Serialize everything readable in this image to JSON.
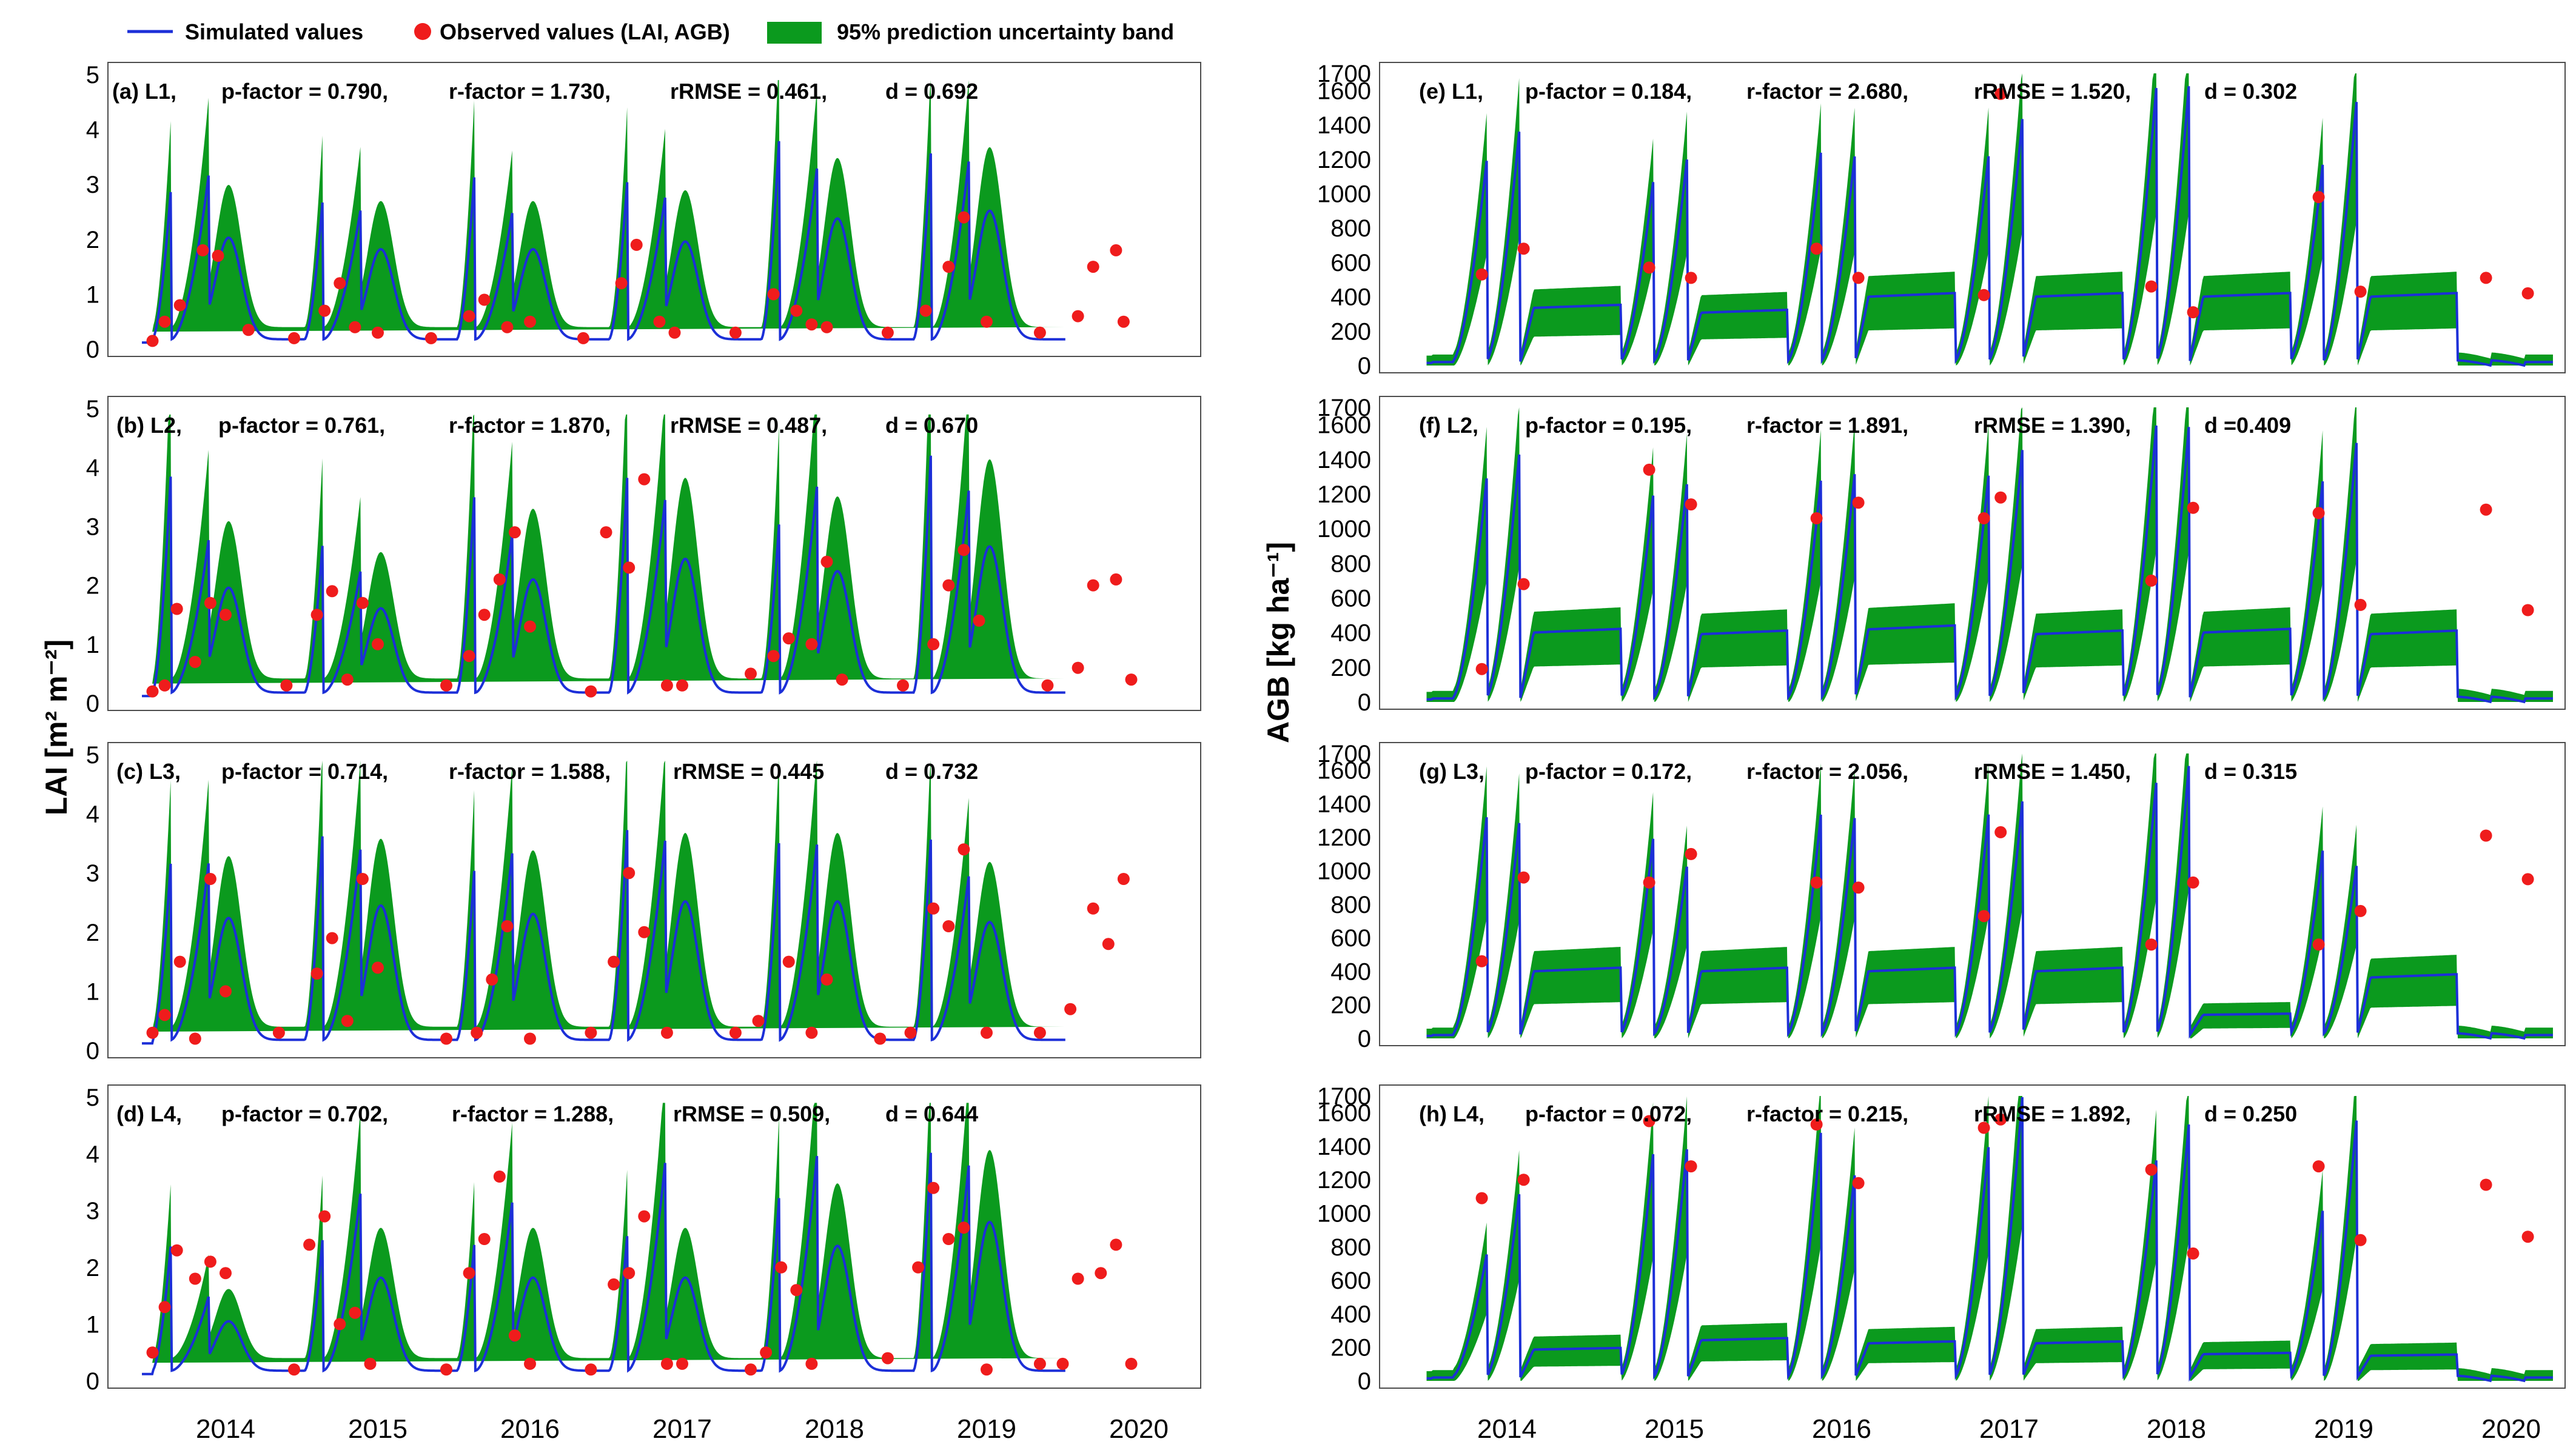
{
  "legend": {
    "simulated": "Simulated values",
    "observed": "Observed values (LAI, AGB)",
    "band": "95% prediction uncertainty band"
  },
  "colors": {
    "band": "#0b9a1e",
    "line": "#1c2fd8",
    "obs": "#ef1c1c"
  },
  "years": [
    "2014",
    "2015",
    "2016",
    "2017",
    "2018",
    "2019",
    "2020"
  ],
  "ylabel_lai": "LAI [m² m⁻²]",
  "ylabel_agb": "AGB [kg ha⁻¹]",
  "chart_data": [
    {
      "id": "a",
      "type": "line",
      "var": "LAI",
      "label": "(a) L1,",
      "p_factor": "p-factor = 0.790,",
      "r_factor": "r-factor = 1.730,",
      "rrmse": "rRMSE  = 0.461,",
      "d": "d = 0.692",
      "ylim": [
        0,
        5
      ],
      "yticks": [
        "0",
        "1",
        "2",
        "3",
        "4",
        "5"
      ],
      "peaks": [
        2.9,
        3.2,
        2.8,
        2.6,
        3.4,
        2.6,
        3.1,
        2.8,
        4.0,
        3.4,
        3.9,
        3.6
      ],
      "band_pad": 0.4,
      "observed": [
        [
          2013.62,
          0.15
        ],
        [
          2013.7,
          0.5
        ],
        [
          2013.8,
          0.8
        ],
        [
          2013.95,
          1.8
        ],
        [
          2014.05,
          1.7
        ],
        [
          2014.25,
          0.35
        ],
        [
          2014.55,
          0.2
        ],
        [
          2014.75,
          0.7
        ],
        [
          2014.85,
          1.2
        ],
        [
          2014.95,
          0.4
        ],
        [
          2015.1,
          0.3
        ],
        [
          2015.45,
          0.2
        ],
        [
          2015.7,
          0.6
        ],
        [
          2015.8,
          0.9
        ],
        [
          2015.95,
          0.4
        ],
        [
          2016.1,
          0.5
        ],
        [
          2016.45,
          0.2
        ],
        [
          2016.7,
          1.2
        ],
        [
          2016.8,
          1.9
        ],
        [
          2016.95,
          0.5
        ],
        [
          2017.05,
          0.3
        ],
        [
          2017.45,
          0.3
        ],
        [
          2017.7,
          1.0
        ],
        [
          2017.85,
          0.7
        ],
        [
          2017.95,
          0.45
        ],
        [
          2018.05,
          0.4
        ],
        [
          2018.45,
          0.3
        ],
        [
          2018.7,
          0.7
        ],
        [
          2018.85,
          1.5
        ],
        [
          2018.95,
          2.4
        ],
        [
          2019.1,
          0.5
        ],
        [
          2019.45,
          0.3
        ],
        [
          2019.7,
          0.6
        ],
        [
          2019.8,
          1.5
        ],
        [
          2019.95,
          1.8
        ],
        [
          2020.0,
          0.5
        ]
      ]
    },
    {
      "id": "b",
      "type": "line",
      "var": "LAI",
      "label": "(b) L2,",
      "p_factor": "p-factor = 0.761,",
      "r_factor": "r-factor = 1.870,",
      "rrmse": "rRMSE  = 0.487,",
      "d": "d = 0.670",
      "ylim": [
        0,
        5
      ],
      "yticks": [
        "0",
        "1",
        "2",
        "3",
        "4",
        "5"
      ],
      "peaks": [
        3.9,
        2.8,
        2.8,
        2.3,
        3.8,
        3.0,
        3.9,
        3.5,
        3.2,
        3.8,
        4.6,
        3.8
      ],
      "band_pad": 0.5,
      "observed": [
        [
          2013.62,
          0.2
        ],
        [
          2013.7,
          0.3
        ],
        [
          2013.78,
          1.6
        ],
        [
          2013.9,
          0.7
        ],
        [
          2014.0,
          1.7
        ],
        [
          2014.1,
          1.5
        ],
        [
          2014.5,
          0.3
        ],
        [
          2014.7,
          1.5
        ],
        [
          2014.8,
          1.9
        ],
        [
          2014.9,
          0.4
        ],
        [
          2015.0,
          1.7
        ],
        [
          2015.1,
          1.0
        ],
        [
          2015.55,
          0.3
        ],
        [
          2015.7,
          0.8
        ],
        [
          2015.8,
          1.5
        ],
        [
          2015.9,
          2.1
        ],
        [
          2016.0,
          2.9
        ],
        [
          2016.1,
          1.3
        ],
        [
          2016.5,
          0.2
        ],
        [
          2016.6,
          2.9
        ],
        [
          2016.75,
          2.3
        ],
        [
          2016.85,
          3.8
        ],
        [
          2017.0,
          0.3
        ],
        [
          2017.1,
          0.3
        ],
        [
          2017.55,
          0.5
        ],
        [
          2017.7,
          0.8
        ],
        [
          2017.8,
          1.1
        ],
        [
          2017.95,
          1.0
        ],
        [
          2018.05,
          2.4
        ],
        [
          2018.15,
          0.4
        ],
        [
          2018.55,
          0.3
        ],
        [
          2018.75,
          1.0
        ],
        [
          2018.85,
          2.0
        ],
        [
          2018.95,
          2.6
        ],
        [
          2019.05,
          1.4
        ],
        [
          2019.5,
          0.3
        ],
        [
          2019.7,
          0.6
        ],
        [
          2019.8,
          2.0
        ],
        [
          2019.95,
          2.1
        ],
        [
          2020.05,
          0.4
        ]
      ]
    },
    {
      "id": "c",
      "type": "line",
      "var": "LAI",
      "label": "(c) L3,",
      "p_factor": "p-factor = 0.714,",
      "r_factor": "r-factor = 1.588,",
      "rrmse": "rRMSE  = 0.445",
      "d": "d = 0.732",
      "ylim": [
        0,
        5
      ],
      "yticks": [
        "0",
        "1",
        "2",
        "3",
        "4",
        "5"
      ],
      "peaks": [
        3.2,
        3.2,
        3.8,
        3.5,
        3.3,
        3.5,
        3.8,
        3.6,
        3.7,
        3.6,
        3.9,
        3.1
      ],
      "band_pad": 0.4,
      "observed": [
        [
          2013.62,
          0.3
        ],
        [
          2013.7,
          0.6
        ],
        [
          2013.8,
          1.5
        ],
        [
          2013.9,
          0.2
        ],
        [
          2014.0,
          2.9
        ],
        [
          2014.1,
          1.0
        ],
        [
          2014.45,
          0.3
        ],
        [
          2014.7,
          1.3
        ],
        [
          2014.8,
          1.9
        ],
        [
          2014.9,
          0.5
        ],
        [
          2015.0,
          2.9
        ],
        [
          2015.1,
          1.4
        ],
        [
          2015.55,
          0.2
        ],
        [
          2015.75,
          0.3
        ],
        [
          2015.85,
          1.2
        ],
        [
          2015.95,
          2.1
        ],
        [
          2016.1,
          0.2
        ],
        [
          2016.5,
          0.3
        ],
        [
          2016.65,
          1.5
        ],
        [
          2016.75,
          3.0
        ],
        [
          2016.85,
          2.0
        ],
        [
          2017.0,
          0.3
        ],
        [
          2017.45,
          0.3
        ],
        [
          2017.6,
          0.5
        ],
        [
          2017.8,
          1.5
        ],
        [
          2017.95,
          0.3
        ],
        [
          2018.05,
          1.2
        ],
        [
          2018.4,
          0.2
        ],
        [
          2018.6,
          0.3
        ],
        [
          2018.75,
          2.4
        ],
        [
          2018.85,
          2.1
        ],
        [
          2018.95,
          3.4
        ],
        [
          2019.1,
          0.3
        ],
        [
          2019.45,
          0.3
        ],
        [
          2019.65,
          0.7
        ],
        [
          2019.8,
          2.4
        ],
        [
          2019.9,
          1.8
        ],
        [
          2020.0,
          2.9
        ]
      ]
    },
    {
      "id": "d",
      "type": "line",
      "var": "LAI",
      "label": "(d) L4,",
      "p_factor": "p-factor = 0.702,",
      "r_factor": "r-factor = 1.288,",
      "rrmse": "rRMSE  = 0.509,",
      "d": "d = 0.644",
      "ylim": [
        0,
        5
      ],
      "yticks": [
        "0",
        "1",
        "2",
        "3",
        "4",
        "5"
      ],
      "peaks": [
        2.4,
        1.5,
        2.6,
        3.4,
        2.6,
        3.3,
        2.6,
        3.9,
        3.4,
        4.1,
        4.4,
        4.0
      ],
      "band_pad": 0.4,
      "observed": [
        [
          2013.62,
          0.5
        ],
        [
          2013.7,
          1.3
        ],
        [
          2013.78,
          2.3
        ],
        [
          2013.9,
          1.8
        ],
        [
          2014.0,
          2.1
        ],
        [
          2014.1,
          1.9
        ],
        [
          2014.55,
          0.2
        ],
        [
          2014.65,
          2.4
        ],
        [
          2014.75,
          2.9
        ],
        [
          2014.85,
          1.0
        ],
        [
          2014.95,
          1.2
        ],
        [
          2015.05,
          0.3
        ],
        [
          2015.55,
          0.2
        ],
        [
          2015.7,
          1.9
        ],
        [
          2015.8,
          2.5
        ],
        [
          2015.9,
          3.6
        ],
        [
          2016.0,
          0.8
        ],
        [
          2016.1,
          0.3
        ],
        [
          2016.5,
          0.2
        ],
        [
          2016.65,
          1.7
        ],
        [
          2016.75,
          1.9
        ],
        [
          2016.85,
          2.9
        ],
        [
          2017.0,
          0.3
        ],
        [
          2017.1,
          0.3
        ],
        [
          2017.55,
          0.2
        ],
        [
          2017.65,
          0.5
        ],
        [
          2017.75,
          2.0
        ],
        [
          2017.85,
          1.6
        ],
        [
          2017.95,
          0.3
        ],
        [
          2018.45,
          0.4
        ],
        [
          2018.65,
          2.0
        ],
        [
          2018.75,
          3.4
        ],
        [
          2018.85,
          2.5
        ],
        [
          2018.95,
          2.7
        ],
        [
          2019.1,
          0.2
        ],
        [
          2019.45,
          0.3
        ],
        [
          2019.6,
          0.3
        ],
        [
          2019.7,
          1.8
        ],
        [
          2019.85,
          1.9
        ],
        [
          2019.95,
          2.4
        ],
        [
          2020.05,
          0.3
        ]
      ]
    },
    {
      "id": "e",
      "type": "line",
      "var": "AGB",
      "label": "(e) L1,",
      "p_factor": "p-factor = 0.184,",
      "r_factor": "r-factor = 2.680,",
      "rrmse": "rRMSE  = 1.520,",
      "d": "d = 0.302",
      "ylim": [
        0,
        1700
      ],
      "yticks": [
        "0",
        "200",
        "400",
        "600",
        "800",
        "1000",
        "1200",
        "1400",
        "1600",
        "1700"
      ],
      "peaks": [
        1200,
        1430,
        1120,
        1240,
        1280,
        1240,
        1240,
        1440,
        1620,
        1700,
        1220,
        1580
      ],
      "plateau": [
        360,
        330,
        430,
        430,
        430,
        430
      ],
      "band_pad": 0.2,
      "observed": [
        [
          2013.95,
          530
        ],
        [
          2014.2,
          680
        ],
        [
          2014.95,
          570
        ],
        [
          2015.2,
          510
        ],
        [
          2015.95,
          680
        ],
        [
          2016.2,
          510
        ],
        [
          2016.95,
          410
        ],
        [
          2017.05,
          1580
        ],
        [
          2017.95,
          460
        ],
        [
          2018.2,
          310
        ],
        [
          2018.95,
          980
        ],
        [
          2019.2,
          430
        ],
        [
          2019.95,
          510
        ],
        [
          2020.2,
          420
        ]
      ]
    },
    {
      "id": "f",
      "type": "line",
      "var": "AGB",
      "label": "(f) L2,",
      "p_factor": "p-factor = 0.195,",
      "r_factor": "r-factor = 1.891,",
      "rrmse": "rRMSE  = 1.390,",
      "d": "d =0.409",
      "ylim": [
        0,
        1700
      ],
      "yticks": [
        "0",
        "200",
        "400",
        "600",
        "800",
        "1000",
        "1200",
        "1400",
        "1600",
        "1700"
      ],
      "peaks": [
        1300,
        1500,
        1250,
        1300,
        1320,
        1340,
        1330,
        1460,
        1600,
        1660,
        1330,
        1540
      ],
      "plateau": [
        430,
        420,
        450,
        420,
        430,
        420
      ],
      "band_pad": 0.2,
      "observed": [
        [
          2013.95,
          190
        ],
        [
          2014.2,
          680
        ],
        [
          2014.95,
          1340
        ],
        [
          2015.2,
          1140
        ],
        [
          2015.95,
          1060
        ],
        [
          2016.2,
          1150
        ],
        [
          2016.95,
          1060
        ],
        [
          2017.05,
          1180
        ],
        [
          2017.95,
          700
        ],
        [
          2018.2,
          1120
        ],
        [
          2018.95,
          1090
        ],
        [
          2019.2,
          560
        ],
        [
          2019.95,
          1110
        ],
        [
          2020.2,
          530
        ]
      ]
    },
    {
      "id": "g",
      "type": "line",
      "var": "AGB",
      "label": "(g) L3,",
      "p_factor": "p-factor = 0.172,",
      "r_factor": "r-factor = 2.056,",
      "rrmse": "rRMSE  = 1.450,",
      "d": "d = 0.315",
      "ylim": [
        0,
        1700
      ],
      "yticks": [
        "0",
        "200",
        "400",
        "600",
        "800",
        "1000",
        "1200",
        "1400",
        "1600",
        "1700"
      ],
      "peaks": [
        1330,
        1350,
        1250,
        1060,
        1380,
        1340,
        1360,
        1420,
        1530,
        1700,
        1170,
        1060
      ],
      "plateau": [
        430,
        430,
        430,
        430,
        150,
        390
      ],
      "band_pad": 0.2,
      "observed": [
        [
          2013.95,
          460
        ],
        [
          2014.2,
          960
        ],
        [
          2014.95,
          930
        ],
        [
          2015.2,
          1100
        ],
        [
          2015.95,
          930
        ],
        [
          2016.2,
          900
        ],
        [
          2016.95,
          730
        ],
        [
          2017.05,
          1230
        ],
        [
          2017.95,
          560
        ],
        [
          2018.2,
          930
        ],
        [
          2018.95,
          560
        ],
        [
          2019.2,
          760
        ],
        [
          2019.95,
          1210
        ],
        [
          2020.2,
          950
        ]
      ]
    },
    {
      "id": "h",
      "type": "line",
      "var": "AGB",
      "label": "(h) L4,",
      "p_factor": "p-factor = 0.072,",
      "r_factor": "r-factor = 0.215,",
      "rrmse": "rRMSE  = 1.892,",
      "d": "d = 0.250",
      "ylim": [
        0,
        1700
      ],
      "yticks": [
        "0",
        "200",
        "400",
        "600",
        "800",
        "1000",
        "1200",
        "1400",
        "1600",
        "1700"
      ],
      "peaks": [
        760,
        1170,
        1420,
        1430,
        1530,
        1250,
        1420,
        1700,
        1320,
        1600,
        1060,
        1600
      ],
      "plateau": [
        200,
        260,
        240,
        240,
        170,
        160
      ],
      "band_pad": 0.2,
      "observed": [
        [
          2013.95,
          1090
        ],
        [
          2014.2,
          1200
        ],
        [
          2014.95,
          1550
        ],
        [
          2015.2,
          1280
        ],
        [
          2015.95,
          1530
        ],
        [
          2016.2,
          1180
        ],
        [
          2016.95,
          1510
        ],
        [
          2017.05,
          1560
        ],
        [
          2017.95,
          1260
        ],
        [
          2018.2,
          760
        ],
        [
          2018.95,
          1280
        ],
        [
          2019.2,
          840
        ],
        [
          2019.95,
          1170
        ],
        [
          2020.2,
          860
        ]
      ]
    }
  ]
}
